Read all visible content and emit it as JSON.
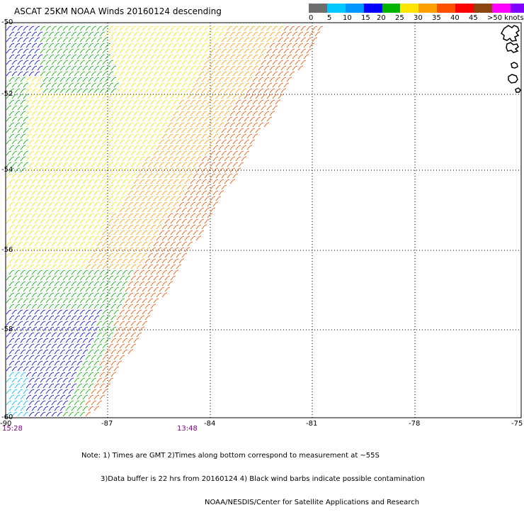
{
  "title": "ASCAT 25KM NOAA Winds 20160124 descending",
  "legend": {
    "labels": [
      "0",
      "5",
      "10",
      "15",
      "20",
      "25",
      "30",
      "35",
      "40",
      "45",
      ">50 knots"
    ],
    "colors": [
      "#6e6e6e",
      "#00c8ff",
      "#0096ff",
      "#0000ff",
      "#00b400",
      "#ffe600",
      "#ffa000",
      "#ff5000",
      "#ff0000",
      "#8b4513",
      "#ff00ff",
      "#7f00ff"
    ]
  },
  "map": {
    "lat_labels": [
      "-50",
      "-52",
      "-54",
      "-56",
      "-58",
      "-60"
    ],
    "lon_labels": [
      "-90",
      "-87",
      "-84",
      "-81",
      "-78",
      "-75"
    ],
    "lat_range": [
      -60,
      -50
    ],
    "lon_range": [
      -90,
      -75
    ],
    "times": [
      "15:28",
      "13:48"
    ]
  },
  "notes": {
    "line1": "Note: 1) Times are GMT 2)Times along bottom correspond to measurement at ~55S",
    "line2": "3)Data buffer is 22 hrs from 20160124 4) Black wind barbs indicate possible contamination",
    "line3": "NOAA/NESDIS/Center for Satellite Applications and Research"
  },
  "colors": {
    "grid": "#000000",
    "land": "#000000",
    "barb_gray": "#6e6e6e",
    "barb_cyan": "#00c8ff",
    "barb_blue": "#0000ff",
    "barb_green": "#00b400",
    "barb_yellow": "#ffe600",
    "barb_orange": "#ffa000",
    "barb_red_orange": "#ff5000",
    "time_label": "#800080"
  }
}
